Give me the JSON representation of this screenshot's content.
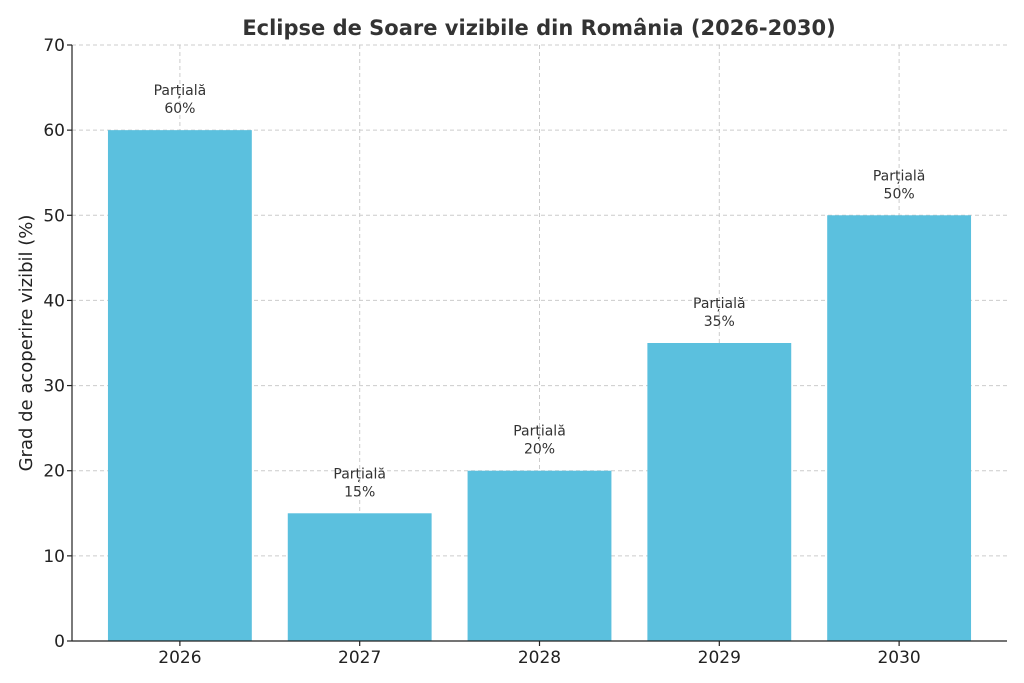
{
  "chart_data": {
    "type": "bar",
    "title": "Eclipse de Soare vizibile din România (2026-2030)",
    "xlabel": "",
    "ylabel": "Grad de acoperire vizibil (%)",
    "categories": [
      "2026",
      "2027",
      "2028",
      "2029",
      "2030"
    ],
    "values": [
      60,
      15,
      20,
      35,
      50
    ],
    "bar_labels": [
      {
        "type": "Parțială",
        "percent": "60%"
      },
      {
        "type": "Parțială",
        "percent": "15%"
      },
      {
        "type": "Parțială",
        "percent": "20%"
      },
      {
        "type": "Parțială",
        "percent": "35%"
      },
      {
        "type": "Parțială",
        "percent": "50%"
      }
    ],
    "ylim": [
      0,
      70
    ],
    "yticks": [
      0,
      10,
      20,
      30,
      40,
      50,
      60,
      70
    ],
    "grid": true,
    "bar_color": "#5bc0de"
  }
}
